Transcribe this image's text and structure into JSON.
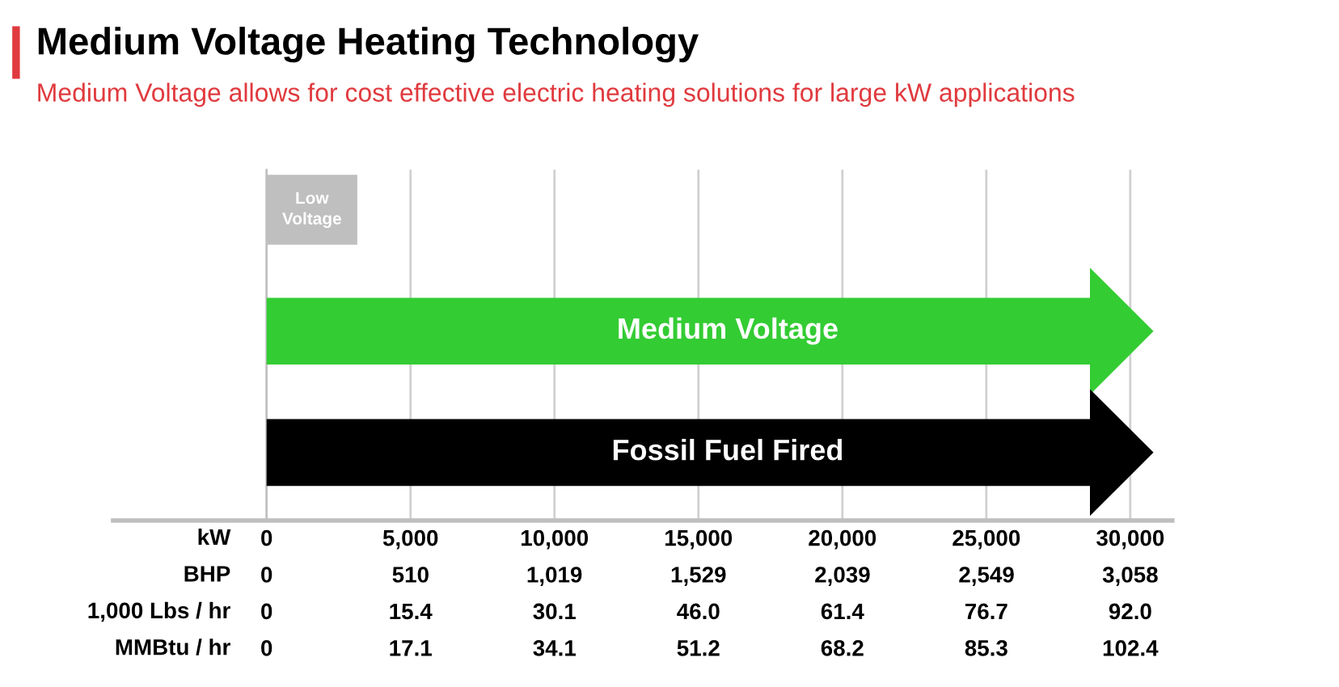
{
  "chart_data": [
    {
      "type": "bar",
      "orientation": "horizontal",
      "title": "Medium Voltage Heating Technology",
      "subtitle": "Medium Voltage allows for cost effective electric heating solutions for large kW applications",
      "categories": [
        "Low Voltage",
        "Medium Voltage",
        "Fossil Fuel Fired"
      ],
      "series": [
        {
          "color": "#bfbfbf",
          "values": [
            3150,
            null,
            null
          ],
          "marker": "none"
        },
        {
          "color": "#33cc33",
          "values": [
            null,
            28600,
            null
          ],
          "marker": "triangle"
        },
        {
          "color": "#000000",
          "values": [
            null,
            null,
            28600
          ],
          "marker": "triangle"
        }
      ],
      "xlim": [
        -5330,
        31460
      ],
      "xticks": [
        0,
        {
          "value": 5000,
          "label": "5,000"
        },
        {
          "value": 10000,
          "label": "10,000"
        },
        {
          "value": 15000,
          "label": "15,000"
        },
        {
          "value": 20000,
          "label": "20,000"
        },
        {
          "value": 25000,
          "label": "25,000"
        },
        {
          "value": 30000,
          "label": "30,000"
        }
      ],
      "xlabel": "kW",
      "x2lim": [
        -543.3,
        3206.7
      ],
      "x2ticks": [
        0,
        510,
        {
          "value": 1019,
          "label": "1,019"
        },
        {
          "value": 1529,
          "label": "1,529"
        },
        {
          "value": 2039,
          "label": "2,039"
        },
        {
          "value": 2549,
          "label": "2,549"
        },
        {
          "value": 3058,
          "label": "3,058"
        }
      ],
      "x2label": "BHP",
      "grid": "x",
      "tick_labels": "x"
    },
    {
      "type": "other",
      "categories": [
        "0",
        "15.4",
        "30.1",
        "46.0",
        "61.4",
        "76.7",
        "92.0"
      ],
      "xlabel": "1,000 Lbs / hr"
    },
    {
      "type": "other",
      "categories": [
        "0",
        "17.1",
        "34.1",
        "51.2",
        "68.2",
        "85.3",
        "102.4"
      ],
      "xlabel": "MMBtu / hr"
    }
  ]
}
